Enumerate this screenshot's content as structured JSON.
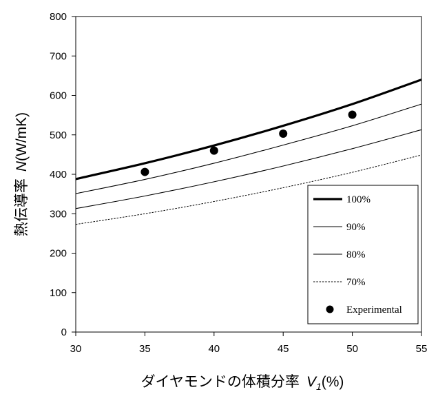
{
  "chart_data": {
    "type": "line",
    "xlabel": "ダイヤモンドの体積分率",
    "xlabel_symbol": "V",
    "xlabel_subscript": "1",
    "xlabel_unit": "(%)",
    "ylabel": "熱伝導率",
    "ylabel_symbol": "N",
    "ylabel_unit": "(W/mK)",
    "xlim": [
      30,
      55
    ],
    "ylim": [
      0,
      800
    ],
    "xticks": [
      30,
      35,
      40,
      45,
      50,
      55
    ],
    "yticks": [
      0,
      100,
      200,
      300,
      400,
      500,
      600,
      700,
      800
    ],
    "grid": false,
    "legend_position": "bottom-right",
    "series": [
      {
        "name": "100%",
        "style": "thick-solid",
        "color": "#000000",
        "x": [
          30,
          35,
          40,
          45,
          50,
          55
        ],
        "y": [
          388,
          428,
          473,
          523,
          578,
          640
        ]
      },
      {
        "name": "90%",
        "style": "thin-solid",
        "color": "#000000",
        "x": [
          30,
          35,
          40,
          45,
          50,
          55
        ],
        "y": [
          351,
          387,
          428,
          474,
          523,
          578
        ]
      },
      {
        "name": "80%",
        "style": "thin-solid",
        "color": "#000000",
        "x": [
          30,
          35,
          40,
          45,
          50,
          55
        ],
        "y": [
          313,
          345,
          381,
          421,
          465,
          513
        ]
      },
      {
        "name": "70%",
        "style": "dotted",
        "color": "#000000",
        "x": [
          30,
          35,
          40,
          45,
          50,
          55
        ],
        "y": [
          273,
          300,
          331,
          366,
          405,
          449
        ]
      },
      {
        "name": "Experimental",
        "style": "marker",
        "color": "#000000",
        "x": [
          35,
          40,
          45,
          50
        ],
        "y": [
          406,
          460,
          503,
          551
        ]
      }
    ]
  }
}
